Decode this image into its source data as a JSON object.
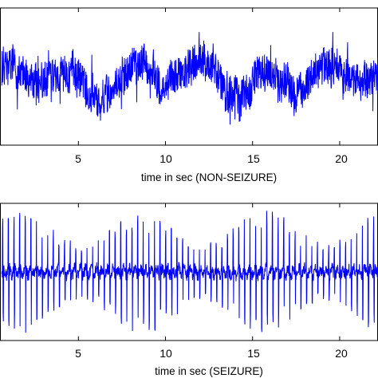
{
  "chart_data": [
    {
      "type": "line",
      "xlabel": "time in sec (NON-SEIZURE)",
      "ylabel": "",
      "x_ticks": [
        "5",
        "10",
        "15",
        "20"
      ],
      "x_tick_values": [
        5,
        10,
        15,
        20
      ],
      "xlim": [
        0.5,
        22.2
      ],
      "ylim": [
        -1,
        1
      ],
      "grid": false,
      "series": [
        {
          "color": "#0000ff",
          "signal": "irregular low-amplitude background EEG",
          "x_start": 0.6,
          "x_end": 22.2,
          "baseline": -0.02,
          "amplitude_range": [
            -0.7,
            0.65
          ]
        }
      ]
    },
    {
      "type": "line",
      "xlabel": "time in sec (SEIZURE)",
      "ylabel": "",
      "x_ticks": [
        "5",
        "10",
        "15",
        "20"
      ],
      "x_tick_values": [
        5,
        10,
        15,
        20
      ],
      "xlim": [
        0.5,
        22.2
      ],
      "ylim": [
        -1,
        1
      ],
      "grid": false,
      "series": [
        {
          "color": "#0000ff",
          "signal": "rhythmic high-amplitude spike discharges",
          "x_start": 0.6,
          "x_end": 22.2,
          "baseline": 0.0,
          "amplitude_range": [
            -0.95,
            0.95
          ]
        }
      ]
    }
  ]
}
